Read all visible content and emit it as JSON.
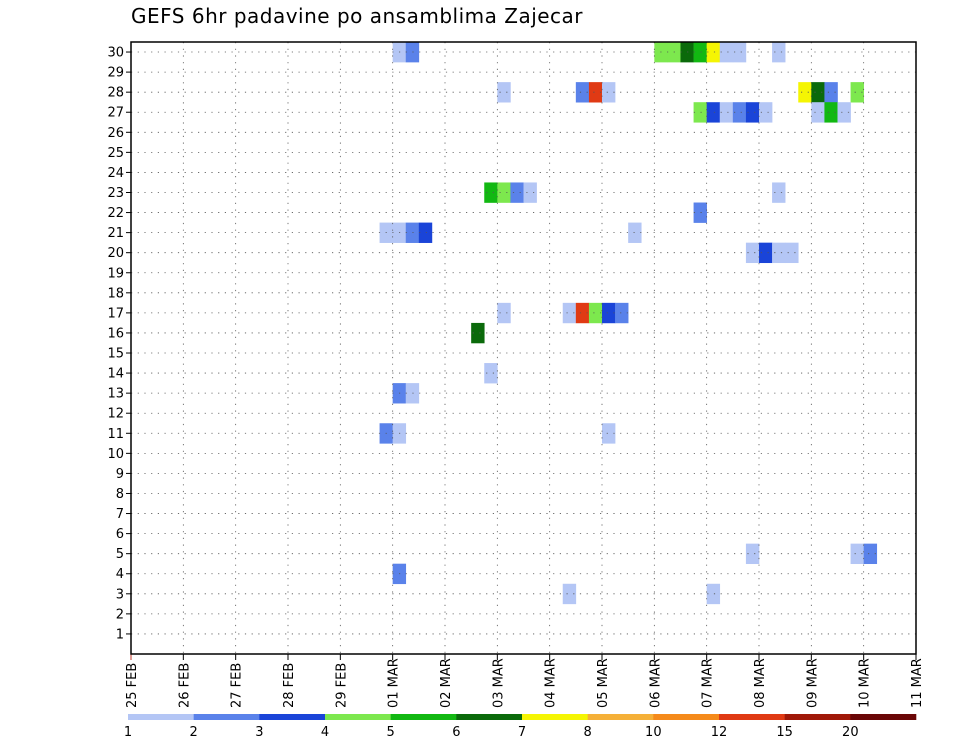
{
  "chart_data": {
    "type": "heatmap",
    "title": "GEFS 6hr padavine po ansamblima Zajecar",
    "x_tick_labels": [
      "25 FEB",
      "26 FEB",
      "27 FEB",
      "28 FEB",
      "29 FEB",
      "01 MAR",
      "02 MAR",
      "03 MAR",
      "04 MAR",
      "05 MAR",
      "06 MAR",
      "07 MAR",
      "08 MAR",
      "09 MAR",
      "10 MAR",
      "11 MAR"
    ],
    "y_tick_labels": [
      "1",
      "2",
      "3",
      "4",
      "5",
      "6",
      "7",
      "8",
      "9",
      "10",
      "11",
      "12",
      "13",
      "14",
      "15",
      "16",
      "17",
      "18",
      "19",
      "20",
      "21",
      "22",
      "23",
      "24",
      "25",
      "26",
      "27",
      "28",
      "29",
      "30"
    ],
    "xlim_days": [
      0,
      15
    ],
    "ylim": [
      0,
      30.5
    ],
    "grid": true,
    "cell_width_days": 0.25,
    "colorbar": {
      "labels": [
        "1",
        "2",
        "3",
        "4",
        "5",
        "6",
        "7",
        "8",
        "10",
        "12",
        "15",
        "20"
      ],
      "colors": [
        "#b4c6f5",
        "#5a82ea",
        "#1a44d8",
        "#7de84e",
        "#12b812",
        "#0b6a0b",
        "#f5f503",
        "#f5b038",
        "#f58a1a",
        "#e03a14",
        "#a01808",
        "#6a0606"
      ]
    },
    "cells": [
      {
        "day": 5.0,
        "member": 30,
        "level": 1
      },
      {
        "day": 5.25,
        "member": 30,
        "level": 2
      },
      {
        "day": 10.0,
        "member": 30,
        "level": 4
      },
      {
        "day": 10.25,
        "member": 30,
        "level": 4
      },
      {
        "day": 10.5,
        "member": 30,
        "level": 6
      },
      {
        "day": 10.75,
        "member": 30,
        "level": 5
      },
      {
        "day": 11.0,
        "member": 30,
        "level": 7
      },
      {
        "day": 11.25,
        "member": 30,
        "level": 1
      },
      {
        "day": 11.5,
        "member": 30,
        "level": 1
      },
      {
        "day": 12.25,
        "member": 30,
        "level": 1
      },
      {
        "day": 7.0,
        "member": 28,
        "level": 1
      },
      {
        "day": 8.5,
        "member": 28,
        "level": 2
      },
      {
        "day": 8.75,
        "member": 28,
        "level": 10
      },
      {
        "day": 9.0,
        "member": 28,
        "level": 1
      },
      {
        "day": 12.75,
        "member": 28,
        "level": 7
      },
      {
        "day": 13.0,
        "member": 28,
        "level": 6
      },
      {
        "day": 13.25,
        "member": 28,
        "level": 2
      },
      {
        "day": 13.75,
        "member": 28,
        "level": 4
      },
      {
        "day": 10.75,
        "member": 27,
        "level": 4
      },
      {
        "day": 11.0,
        "member": 27,
        "level": 3
      },
      {
        "day": 11.25,
        "member": 27,
        "level": 1
      },
      {
        "day": 11.5,
        "member": 27,
        "level": 2
      },
      {
        "day": 11.75,
        "member": 27,
        "level": 3
      },
      {
        "day": 12.0,
        "member": 27,
        "level": 1
      },
      {
        "day": 13.0,
        "member": 27,
        "level": 1
      },
      {
        "day": 13.25,
        "member": 27,
        "level": 5
      },
      {
        "day": 13.5,
        "member": 27,
        "level": 1
      },
      {
        "day": 6.75,
        "member": 23,
        "level": 5
      },
      {
        "day": 7.0,
        "member": 23,
        "level": 4
      },
      {
        "day": 7.25,
        "member": 23,
        "level": 2
      },
      {
        "day": 7.5,
        "member": 23,
        "level": 1
      },
      {
        "day": 12.25,
        "member": 23,
        "level": 1
      },
      {
        "day": 10.75,
        "member": 22,
        "level": 2
      },
      {
        "day": 4.75,
        "member": 21,
        "level": 1
      },
      {
        "day": 5.0,
        "member": 21,
        "level": 1
      },
      {
        "day": 5.25,
        "member": 21,
        "level": 2
      },
      {
        "day": 5.5,
        "member": 21,
        "level": 3
      },
      {
        "day": 9.5,
        "member": 21,
        "level": 1
      },
      {
        "day": 11.75,
        "member": 20,
        "level": 1
      },
      {
        "day": 12.0,
        "member": 20,
        "level": 3
      },
      {
        "day": 12.25,
        "member": 20,
        "level": 1
      },
      {
        "day": 12.5,
        "member": 20,
        "level": 1
      },
      {
        "day": 7.0,
        "member": 17,
        "level": 1
      },
      {
        "day": 8.25,
        "member": 17,
        "level": 1
      },
      {
        "day": 8.5,
        "member": 17,
        "level": 10
      },
      {
        "day": 8.75,
        "member": 17,
        "level": 4
      },
      {
        "day": 9.0,
        "member": 17,
        "level": 3
      },
      {
        "day": 9.25,
        "member": 17,
        "level": 2
      },
      {
        "day": 6.5,
        "member": 16,
        "level": 6
      },
      {
        "day": 6.75,
        "member": 14,
        "level": 1
      },
      {
        "day": 5.0,
        "member": 13,
        "level": 2
      },
      {
        "day": 5.25,
        "member": 13,
        "level": 1
      },
      {
        "day": 4.75,
        "member": 11,
        "level": 2
      },
      {
        "day": 5.0,
        "member": 11,
        "level": 1
      },
      {
        "day": 9.0,
        "member": 11,
        "level": 1
      },
      {
        "day": 11.75,
        "member": 5,
        "level": 1
      },
      {
        "day": 13.75,
        "member": 5,
        "level": 1
      },
      {
        "day": 14.0,
        "member": 5,
        "level": 2
      },
      {
        "day": 5.0,
        "member": 4,
        "level": 2
      },
      {
        "day": 8.25,
        "member": 3,
        "level": 1
      },
      {
        "day": 11.0,
        "member": 3,
        "level": 1
      }
    ]
  }
}
